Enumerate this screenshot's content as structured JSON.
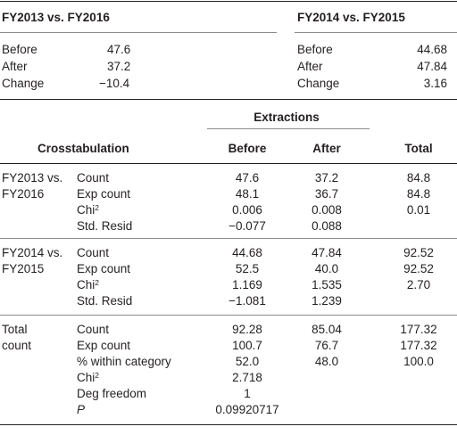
{
  "summary": {
    "left": {
      "title": "FY2013 vs. FY2016",
      "rows": [
        {
          "label": "Before",
          "value": "47.6"
        },
        {
          "label": "After",
          "value": "37.2"
        },
        {
          "label": "Change",
          "value": "−10.4"
        }
      ]
    },
    "right": {
      "title": "FY2014 vs. FY2015",
      "rows": [
        {
          "label": "Before",
          "value": "44.68"
        },
        {
          "label": "After",
          "value": "47.84"
        },
        {
          "label": "Change",
          "value": "3.16"
        }
      ]
    }
  },
  "crosstab": {
    "group_header": "Extractions",
    "header": {
      "crosstab": "Crosstabulation",
      "before": "Before",
      "after": "After",
      "total": "Total"
    },
    "groups": [
      {
        "name_line1": "FY2013 vs.",
        "name_line2": "FY2016",
        "rows": [
          {
            "label": "Count",
            "before": "47.6",
            "after": "37.2",
            "total": "84.8"
          },
          {
            "label": "Exp count",
            "before": "48.1",
            "after": "36.7",
            "total": "84.8"
          },
          {
            "label": "Chi",
            "label_sup": "2",
            "before": "0.006",
            "after": "0.008",
            "total": "0.01"
          },
          {
            "label": "Std. Resid",
            "before": "−0.077",
            "after": "0.088",
            "total": ""
          }
        ]
      },
      {
        "name_line1": "FY2014 vs.",
        "name_line2": "FY2015",
        "rows": [
          {
            "label": "Count",
            "before": "44.68",
            "after": "47.84",
            "total": "92.52"
          },
          {
            "label": "Exp count",
            "before": "52.5",
            "after": "40.0",
            "total": "92.52"
          },
          {
            "label": "Chi",
            "label_sup": "2",
            "before": "1.169",
            "after": "1.535",
            "total": "2.70"
          },
          {
            "label": "Std. Resid",
            "before": "−1.081",
            "after": "1.239",
            "total": ""
          }
        ]
      },
      {
        "name_line1": "Total",
        "name_line2": "count",
        "rows": [
          {
            "label": "Count",
            "before": "92.28",
            "after": "85.04",
            "total": "177.32"
          },
          {
            "label": "Exp count",
            "before": "100.7",
            "after": "76.7",
            "total": "177.32"
          },
          {
            "label": "% within category",
            "before": "52.0",
            "after": "48.0",
            "total": "100.0"
          },
          {
            "label": "Chi",
            "label_sup": "2",
            "before": "2.718",
            "after": "",
            "total": ""
          },
          {
            "label": "Deg freedom",
            "before": "1",
            "after": "",
            "total": ""
          },
          {
            "label": "P",
            "before": "0.09920717",
            "after": "",
            "total": ""
          }
        ]
      }
    ]
  }
}
